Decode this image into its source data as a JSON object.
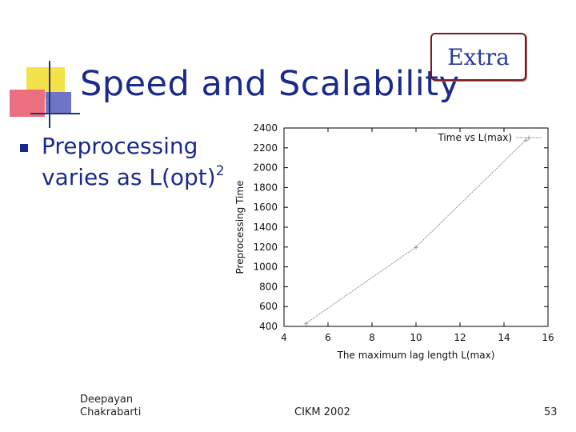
{
  "slide": {
    "title": "Speed and Scalability",
    "badge": "Extra",
    "bullet_main": "Preprocessing varies as L(opt)",
    "bullet_sup": "2",
    "footer_author": "Deepayan Chakrabarti",
    "footer_conference": "CIKM 2002",
    "page_number": "53"
  },
  "colors": {
    "title": "#1a2a8c",
    "badge_border": "#7a1a1a",
    "series": "#888888"
  },
  "chart_data": {
    "type": "line",
    "title": "",
    "xlabel": "The maximum lag length L(max)",
    "ylabel": "Preprocessing Time",
    "xlim": [
      4,
      16
    ],
    "ylim": [
      400,
      2400
    ],
    "xticks": [
      4,
      6,
      8,
      10,
      12,
      14,
      16
    ],
    "yticks": [
      400,
      600,
      800,
      1000,
      1200,
      1400,
      1600,
      1800,
      2000,
      2200,
      2400
    ],
    "legend_position": "top-right",
    "series": [
      {
        "name": "Time vs L(max)",
        "x": [
          5,
          10,
          15
        ],
        "y": [
          430,
          1200,
          2280
        ]
      }
    ]
  }
}
